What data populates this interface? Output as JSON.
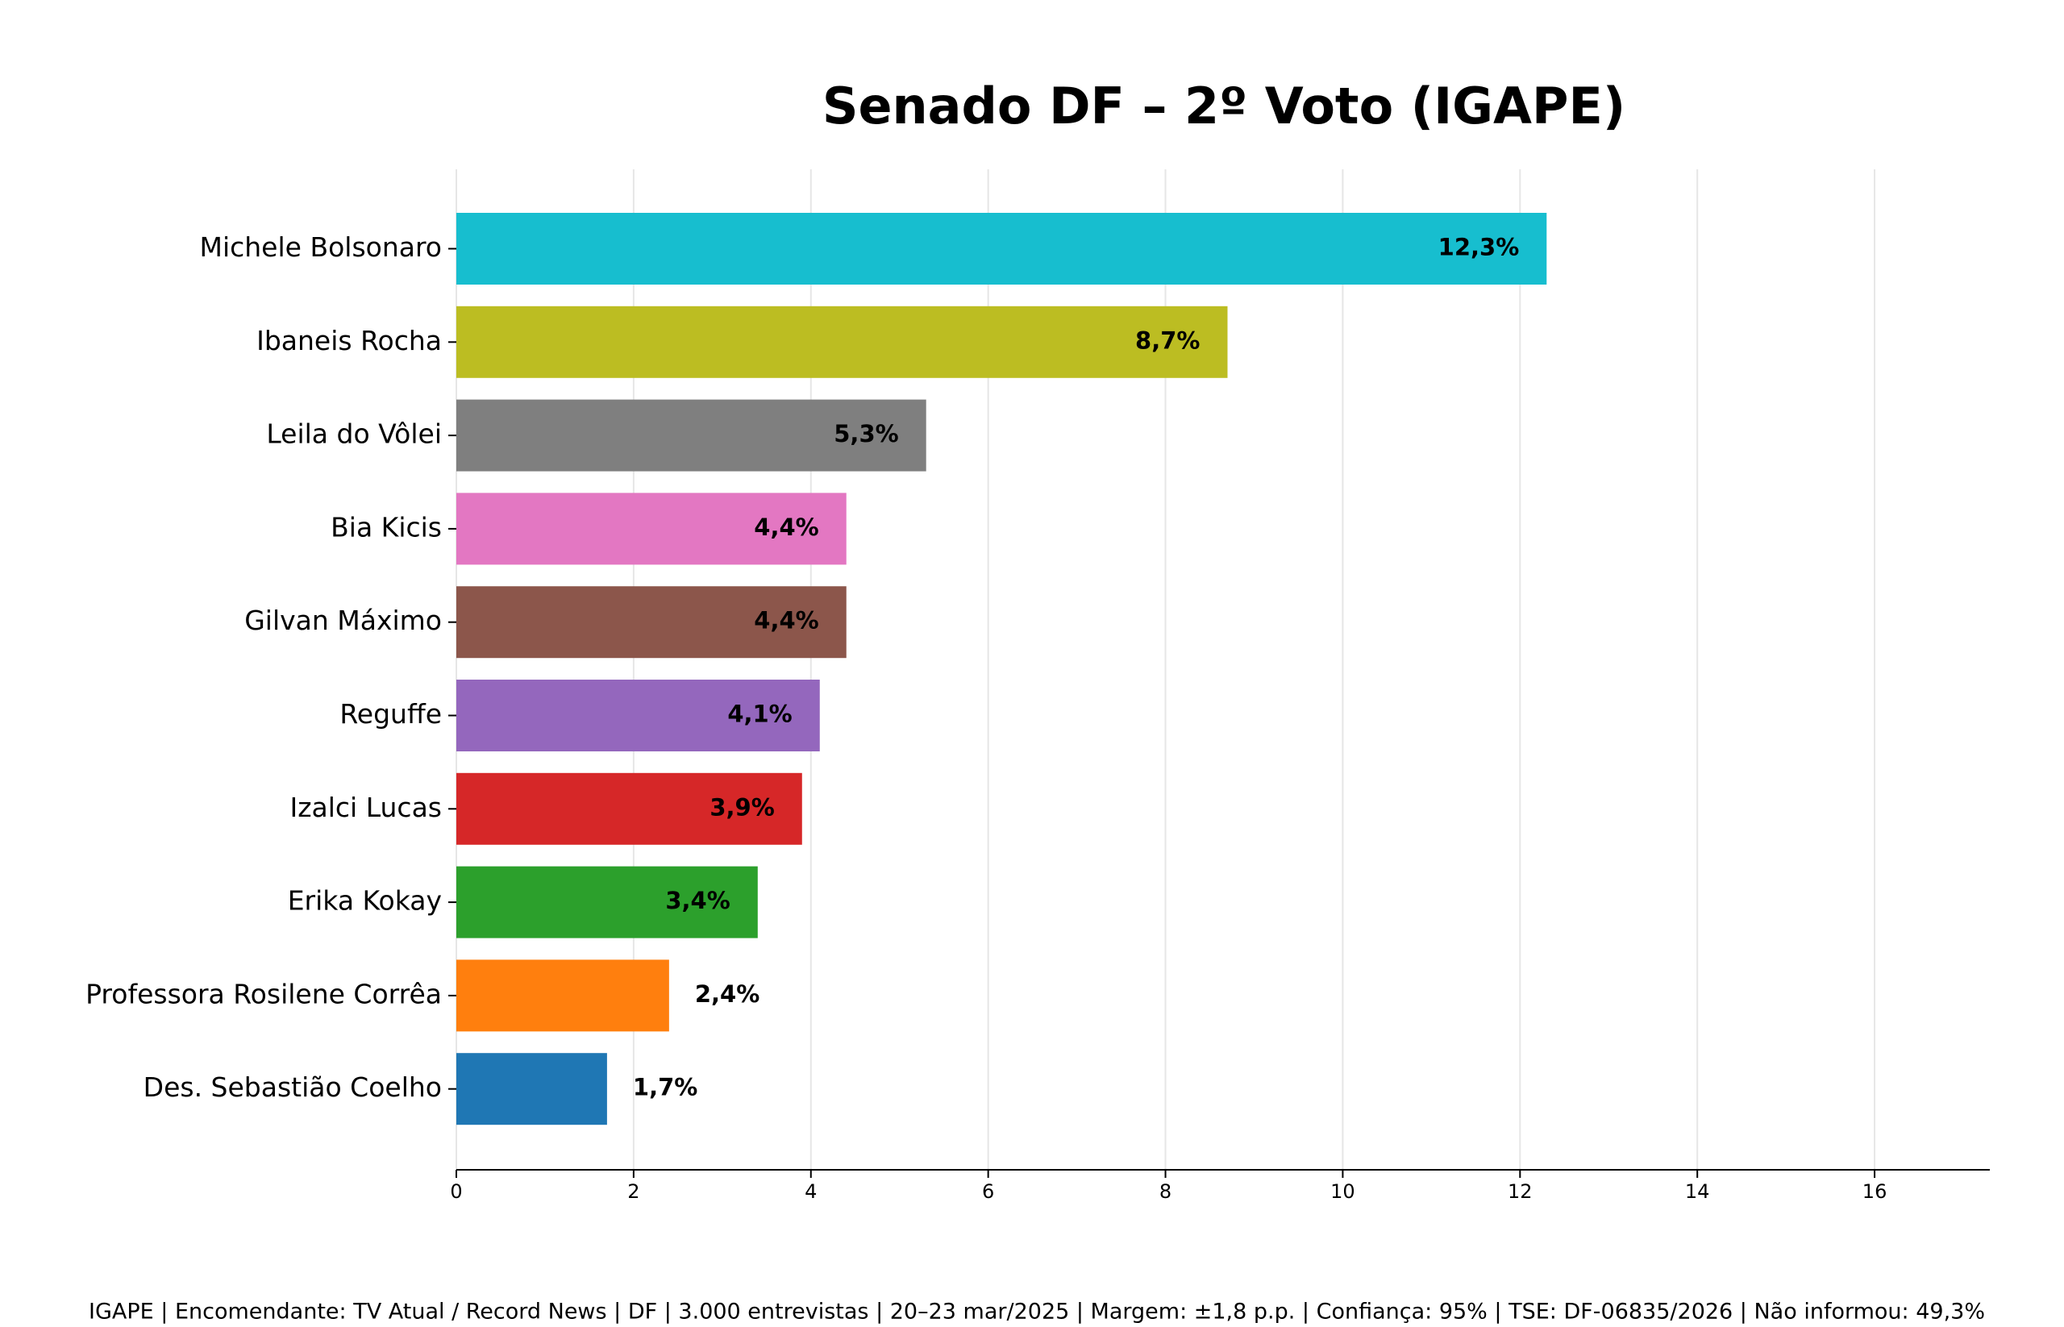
{
  "chart_data": {
    "type": "bar",
    "orientation": "horizontal",
    "title": "Senado DF – 2º Voto (IGAPE)",
    "categories": [
      "Michele Bolsonaro",
      "Ibaneis Rocha",
      "Leila do Vôlei",
      "Bia Kicis",
      "Gilvan Máximo",
      "Reguffe",
      "Izalci Lucas",
      "Erika Kokay",
      "Professora Rosilene Corrêa",
      "Des. Sebastião Coelho"
    ],
    "values": [
      12.3,
      8.7,
      5.3,
      4.4,
      4.4,
      4.1,
      3.9,
      3.4,
      2.4,
      1.7
    ],
    "value_labels": [
      "12,3%",
      "8,7%",
      "5,3%",
      "4,4%",
      "4,4%",
      "4,1%",
      "3,9%",
      "3,4%",
      "2,4%",
      "1,7%"
    ],
    "colors": [
      "#17becf",
      "#bcbd22",
      "#7f7f7f",
      "#e377c2",
      "#8c564b",
      "#9467bd",
      "#d62728",
      "#2ca02c",
      "#ff7f0e",
      "#1f77b4"
    ],
    "xlim": [
      0,
      17.3
    ],
    "xticks": [
      0,
      2,
      4,
      6,
      8,
      10,
      12,
      14,
      16
    ],
    "grid": true,
    "footer": "IGAPE | Encomendante: TV Atual / Record News | DF | 3.000 entrevistas | 20–23 mar/2025 | Margem: ±1,8 p.p. | Confiança: 95% | TSE: DF-06835/2026 | Não informou: 49,3%"
  }
}
